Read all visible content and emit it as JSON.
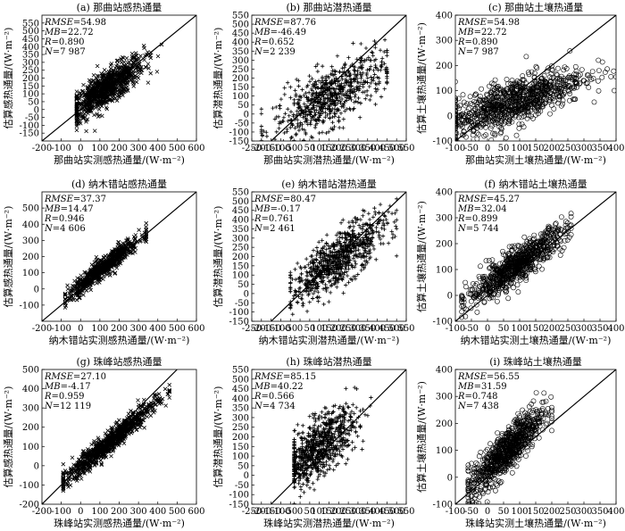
{
  "chart_data": [
    {
      "type": "scatter",
      "title": "(a) 那曲站感热通量",
      "xlabel": "那曲站实测感热通量/(W·m⁻²)",
      "ylabel": "估算感热通量/(W·m⁻²)",
      "xlim": [
        -200,
        600
      ],
      "ylim": [
        -200,
        600
      ],
      "xticks": [
        -200,
        -100,
        0,
        100,
        200,
        300,
        400,
        500,
        600
      ],
      "yticks": [
        -150,
        -100,
        -50,
        0,
        50,
        100,
        150,
        200,
        250,
        300,
        350,
        400,
        450,
        500,
        550
      ],
      "marker": "x",
      "stats": {
        "RMSE": "54.98",
        "MB": "22.72",
        "R": "0.890",
        "N": "7 987"
      },
      "cluster": {
        "x_range": [
          -20,
          420
        ],
        "x_mean": 130,
        "slope": 0.82,
        "intercept": 25,
        "spread": 55,
        "n_display": 900
      }
    },
    {
      "type": "scatter",
      "title": "(b) 那曲站潜热通量",
      "xlabel": "那曲站实测潜热通量/(W·m⁻²)",
      "ylabel": "估算潜热通量/(W·m⁻²)",
      "xlim": [
        -250,
        550
      ],
      "ylim": [
        -150,
        550
      ],
      "xticks": [
        -250,
        -200,
        -150,
        -100,
        -50,
        0,
        50,
        100,
        150,
        200,
        250,
        300,
        350,
        400,
        450,
        500,
        550
      ],
      "yticks": [
        -150,
        -100,
        -50,
        0,
        50,
        100,
        150,
        200,
        250,
        300,
        350,
        400,
        450,
        500,
        550
      ],
      "marker": "+",
      "stats": {
        "RMSE": "87.76",
        "MB": "-46.49",
        "R": "0.652",
        "N": "2 239"
      },
      "cluster": {
        "x_range": [
          -200,
          450
        ],
        "x_mean": 150,
        "slope": 0.55,
        "intercept": 10,
        "spread": 80,
        "n_display": 700
      }
    },
    {
      "type": "scatter",
      "title": "(c) 那曲站土壤热通量",
      "xlabel": "那曲站实测土壤热通量/(W·m⁻²)",
      "ylabel": "估算土壤热通量/(W·m⁻²)",
      "xlim": [
        -100,
        400
      ],
      "ylim": [
        -100,
        400
      ],
      "xticks": [
        -100,
        -50,
        0,
        50,
        100,
        150,
        200,
        250,
        300,
        350,
        400
      ],
      "yticks": [
        -100,
        0,
        100,
        200,
        300,
        400
      ],
      "marker": "o",
      "stats": {
        "RMSE": "54.98",
        "MB": "22.72",
        "R": "0.890",
        "N": "7 987"
      },
      "cluster": {
        "x_range": [
          -100,
          400
        ],
        "x_mean": 80,
        "slope": 0.45,
        "intercept": 20,
        "spread": 45,
        "n_display": 900
      }
    },
    {
      "type": "scatter",
      "title": "(d) 纳木错站感热通量",
      "xlabel": "纳木错站实测感热通量/(W·m⁻²)",
      "ylabel": "估算感热通量/(W·m⁻²)",
      "xlim": [
        -200,
        600
      ],
      "ylim": [
        -200,
        600
      ],
      "xticks": [
        -200,
        -100,
        0,
        100,
        200,
        300,
        400,
        500,
        600
      ],
      "yticks": [
        -100,
        0,
        100,
        200,
        300,
        400,
        500
      ],
      "marker": "x",
      "stats": {
        "RMSE": "37.37",
        "MB": "14.47",
        "R": "0.946",
        "N": "4 606"
      },
      "cluster": {
        "x_range": [
          -80,
          340
        ],
        "x_mean": 120,
        "slope": 0.95,
        "intercept": 20,
        "spread": 30,
        "n_display": 700
      }
    },
    {
      "type": "scatter",
      "title": "(e) 纳木错站潜热通量",
      "xlabel": "纳木错站实测潜热通量/(W·m⁻²)",
      "ylabel": "估算潜热通量/(W·m⁻²)",
      "xlim": [
        -250,
        550
      ],
      "ylim": [
        -150,
        550
      ],
      "xticks": [
        -250,
        -200,
        -150,
        -100,
        -50,
        0,
        50,
        100,
        150,
        200,
        250,
        300,
        350,
        400,
        450,
        500,
        550
      ],
      "yticks": [
        -150,
        -100,
        -50,
        0,
        50,
        100,
        150,
        200,
        250,
        300,
        350,
        400,
        450,
        500,
        550
      ],
      "marker": "+",
      "stats": {
        "RMSE": "80.47",
        "MB": "-0.17",
        "R": "0.761",
        "N": "2 461"
      },
      "cluster": {
        "x_range": [
          -50,
          500
        ],
        "x_mean": 200,
        "slope": 0.75,
        "intercept": 40,
        "spread": 70,
        "n_display": 800
      }
    },
    {
      "type": "scatter",
      "title": "(f) 纳木错站土壤热通量",
      "xlabel": "纳木错站实测土壤热通量/(W·m⁻²)",
      "ylabel": "估算土壤热通量/(W·m⁻²)",
      "xlim": [
        -100,
        400
      ],
      "ylim": [
        -100,
        400
      ],
      "xticks": [
        -100,
        -50,
        0,
        50,
        100,
        150,
        200,
        250,
        300,
        350,
        400
      ],
      "yticks": [
        -100,
        0,
        100,
        200,
        300,
        400
      ],
      "marker": "o",
      "stats": {
        "RMSE": "45.27",
        "MB": "32.04",
        "R": "0.899",
        "N": "5 744"
      },
      "cluster": {
        "x_range": [
          -80,
          260
        ],
        "x_mean": 90,
        "slope": 0.85,
        "intercept": 40,
        "spread": 32,
        "n_display": 800
      }
    },
    {
      "type": "scatter",
      "title": "(g) 珠峰站感热通量",
      "xlabel": "珠峰站实测感热通量/(W·m⁻²)",
      "ylabel": "估算感热通量/(W·m⁻²)",
      "xlim": [
        -200,
        600
      ],
      "ylim": [
        -200,
        500
      ],
      "xticks": [
        -200,
        -100,
        0,
        100,
        200,
        300,
        400,
        500,
        600
      ],
      "yticks": [
        -200,
        -100,
        0,
        100,
        200,
        300,
        400,
        500
      ],
      "marker": "x",
      "stats": {
        "RMSE": "27.10",
        "MB": "-4.17",
        "R": "0.959",
        "N": "12 119"
      },
      "cluster": {
        "x_range": [
          -90,
          460
        ],
        "x_mean": 150,
        "slope": 0.85,
        "intercept": -5,
        "spread": 28,
        "n_display": 900
      }
    },
    {
      "type": "scatter",
      "title": "(h) 珠峰站潜热通量",
      "xlabel": "珠峰站实测潜热通量/(W·m⁻²)",
      "ylabel": "估算潜热通量/(W·m⁻²)",
      "xlim": [
        -250,
        550
      ],
      "ylim": [
        -150,
        550
      ],
      "xticks": [
        -250,
        -200,
        -150,
        -100,
        -50,
        0,
        50,
        100,
        150,
        200,
        250,
        300,
        350,
        400,
        450,
        500,
        550
      ],
      "yticks": [
        -150,
        -100,
        -50,
        0,
        50,
        100,
        150,
        200,
        250,
        300,
        350,
        400,
        450,
        500,
        550
      ],
      "marker": "+",
      "stats": {
        "RMSE": "85.15",
        "MB": "40.22",
        "R": "0.566",
        "N": "4 734"
      },
      "cluster": {
        "x_range": [
          -30,
          420
        ],
        "x_mean": 90,
        "slope": 0.7,
        "intercept": 80,
        "spread": 75,
        "n_display": 800
      }
    },
    {
      "type": "scatter",
      "title": "(i) 珠峰站土壤热通量",
      "xlabel": "珠峰站实测土壤热通量/(W·m⁻²)",
      "ylabel": "估算土壤热通量/(W·m⁻²)",
      "xlim": [
        -100,
        400
      ],
      "ylim": [
        -100,
        400
      ],
      "xticks": [
        -100,
        -50,
        0,
        50,
        100,
        150,
        200,
        250,
        300,
        350,
        400
      ],
      "yticks": [
        -100,
        0,
        100,
        200,
        300,
        400
      ],
      "marker": "o",
      "stats": {
        "RMSE": "56.55",
        "MB": "31.59",
        "R": "0.748",
        "N": "7 438"
      },
      "cluster": {
        "x_range": [
          -60,
          200
        ],
        "x_mean": 60,
        "slope": 1.15,
        "intercept": 30,
        "spread": 40,
        "n_display": 800
      }
    }
  ]
}
